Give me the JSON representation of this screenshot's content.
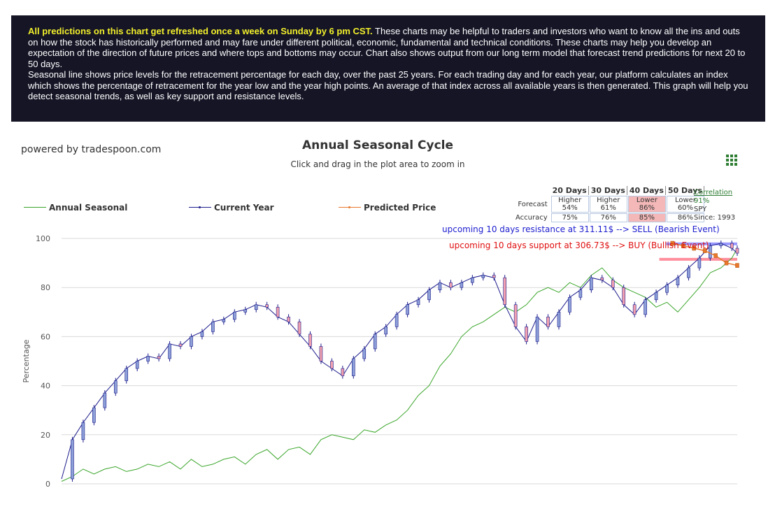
{
  "banner": {
    "highlight": "All predictions on this chart get refreshed once a week on Sunday by 6 pm CST.",
    "text1": " These charts may be helpful to traders and investors who want to know all the ins and outs on how the stock has historically performed and may fare under different political, economic, fundamental and technical conditions. These charts may help you develop an expectation of the direction of future prices and where tops and bottoms may occur. Chart also shows output from our long term model that forecast trend predictions for next 20 to 50 days.",
    "text2": "Seasonal line shows price levels for the retracement percentage for each day, over the past 25 years. For each trading day and for each year, our platform calculates an index which shows the percentage of retracement for the year low and the year high points. An average of that index across all available years is then generated. This graph will help you detect seasonal trends, as well as key support and resistance levels."
  },
  "powered_by": "powered by tradespoon.com",
  "menu_icon": "grid-menu-icon",
  "prediction_table": {
    "headers": [
      "20 Days",
      "30 Days",
      "40 Days",
      "50 Days"
    ],
    "forecast_label": "Forecast",
    "accuracy_label": "Accuracy",
    "forecast": [
      {
        "dir": "Higher",
        "pct": "54%"
      },
      {
        "dir": "Higher",
        "pct": "61%"
      },
      {
        "dir": "Lower",
        "pct": "86%"
      },
      {
        "dir": "Lower",
        "pct": "60%"
      }
    ],
    "accuracy": [
      "75%",
      "76%",
      "85%",
      "86%"
    ],
    "highlight_color": "#f4b8b8"
  },
  "correlation": {
    "label": "Correlation",
    "value": "91%",
    "ticker": "SPY",
    "since": "Since: 1993"
  },
  "annotations": {
    "resistance": "upcoming 10 days resistance at 311.11$ --> SELL (Bearish Event)",
    "support": "upcoming 10 days support at 306.73$ --> BUY (Bullish Event)"
  },
  "colors": {
    "seasonal": "#3aa62a",
    "current_year": "#1c1c8c",
    "predicted": "#e8782a",
    "resistance_band": "#8888ff",
    "support_band": "#ff7b8a",
    "bull_candle": "#8da0d8",
    "bear_candle": "#f0a0b0"
  },
  "chart_data": {
    "type": "line",
    "title": "Annual Seasonal Cycle",
    "subtitle": "Click and drag in the plot area to zoom in",
    "xlabel": "",
    "ylabel": "Percentage",
    "ylim": [
      0,
      100
    ],
    "yticks": [
      0,
      20,
      40,
      60,
      80,
      100
    ],
    "grid": true,
    "legend_position": "top",
    "x_range": [
      0,
      250
    ],
    "series": [
      {
        "name": "Annual Seasonal",
        "points": [
          [
            0,
            1
          ],
          [
            4,
            3
          ],
          [
            8,
            6
          ],
          [
            12,
            4
          ],
          [
            16,
            6
          ],
          [
            20,
            7
          ],
          [
            24,
            5
          ],
          [
            28,
            6
          ],
          [
            32,
            8
          ],
          [
            36,
            7
          ],
          [
            40,
            9
          ],
          [
            44,
            6
          ],
          [
            48,
            10
          ],
          [
            52,
            7
          ],
          [
            56,
            8
          ],
          [
            60,
            10
          ],
          [
            64,
            11
          ],
          [
            68,
            8
          ],
          [
            72,
            12
          ],
          [
            76,
            14
          ],
          [
            80,
            10
          ],
          [
            84,
            14
          ],
          [
            88,
            15
          ],
          [
            92,
            12
          ],
          [
            96,
            18
          ],
          [
            100,
            20
          ],
          [
            104,
            19
          ],
          [
            108,
            18
          ],
          [
            112,
            22
          ],
          [
            116,
            21
          ],
          [
            120,
            24
          ],
          [
            124,
            26
          ],
          [
            128,
            30
          ],
          [
            132,
            36
          ],
          [
            136,
            40
          ],
          [
            140,
            48
          ],
          [
            144,
            53
          ],
          [
            148,
            60
          ],
          [
            152,
            64
          ],
          [
            156,
            66
          ],
          [
            160,
            69
          ],
          [
            164,
            72
          ],
          [
            168,
            70
          ],
          [
            172,
            73
          ],
          [
            176,
            78
          ],
          [
            180,
            80
          ],
          [
            184,
            78
          ],
          [
            188,
            82
          ],
          [
            192,
            80
          ],
          [
            196,
            85
          ],
          [
            200,
            88
          ],
          [
            204,
            83
          ],
          [
            208,
            80
          ],
          [
            212,
            78
          ],
          [
            216,
            76
          ],
          [
            220,
            72
          ],
          [
            224,
            74
          ],
          [
            228,
            70
          ],
          [
            232,
            75
          ],
          [
            236,
            80
          ],
          [
            240,
            86
          ],
          [
            244,
            88
          ],
          [
            248,
            92
          ],
          [
            250,
            96
          ]
        ]
      },
      {
        "name": "Current Year",
        "points": [
          [
            0,
            2
          ],
          [
            4,
            18
          ],
          [
            8,
            25
          ],
          [
            12,
            31
          ],
          [
            16,
            37
          ],
          [
            20,
            42
          ],
          [
            24,
            47
          ],
          [
            28,
            50
          ],
          [
            32,
            52
          ],
          [
            36,
            51
          ],
          [
            40,
            57
          ],
          [
            44,
            56
          ],
          [
            48,
            60
          ],
          [
            52,
            62
          ],
          [
            56,
            66
          ],
          [
            60,
            67
          ],
          [
            64,
            70
          ],
          [
            68,
            71
          ],
          [
            72,
            73
          ],
          [
            76,
            72
          ],
          [
            80,
            68
          ],
          [
            84,
            66
          ],
          [
            88,
            61
          ],
          [
            92,
            56
          ],
          [
            96,
            50
          ],
          [
            100,
            47
          ],
          [
            104,
            44
          ],
          [
            108,
            51
          ],
          [
            112,
            55
          ],
          [
            116,
            61
          ],
          [
            120,
            64
          ],
          [
            124,
            69
          ],
          [
            128,
            73
          ],
          [
            132,
            75
          ],
          [
            136,
            79
          ],
          [
            140,
            82
          ],
          [
            144,
            80
          ],
          [
            148,
            82
          ],
          [
            152,
            84
          ],
          [
            156,
            85
          ],
          [
            160,
            84
          ],
          [
            164,
            73
          ],
          [
            168,
            64
          ],
          [
            172,
            58
          ],
          [
            176,
            68
          ],
          [
            180,
            64
          ],
          [
            184,
            70
          ],
          [
            188,
            76
          ],
          [
            192,
            79
          ],
          [
            196,
            84
          ],
          [
            200,
            83
          ],
          [
            204,
            80
          ],
          [
            208,
            73
          ],
          [
            212,
            69
          ],
          [
            216,
            75
          ],
          [
            220,
            78
          ],
          [
            224,
            81
          ],
          [
            228,
            84
          ],
          [
            232,
            88
          ],
          [
            236,
            92
          ],
          [
            240,
            97
          ],
          [
            244,
            98
          ],
          [
            248,
            96
          ],
          [
            250,
            94
          ]
        ]
      },
      {
        "name": "Predicted Price",
        "points": [
          [
            226,
            98
          ],
          [
            230,
            97
          ],
          [
            234,
            96
          ],
          [
            238,
            95
          ],
          [
            242,
            93
          ],
          [
            246,
            90
          ],
          [
            250,
            89
          ]
        ]
      }
    ],
    "resistance_level": 311.11,
    "support_level": 306.73
  }
}
